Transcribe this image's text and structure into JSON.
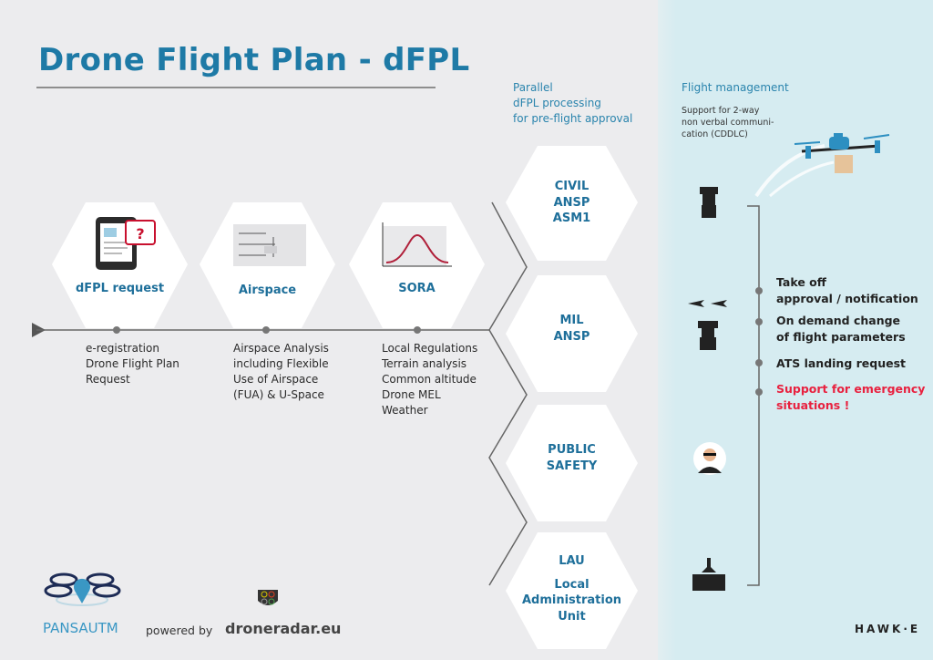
{
  "title": "Drone Flight Plan - dFPL",
  "steps": [
    {
      "label": "dFPL request",
      "details": [
        "e-registration",
        "Drone Flight Plan",
        "Request"
      ]
    },
    {
      "label": "Airspace",
      "details": [
        "Airspace Analysis",
        "including Flexible",
        "Use of Airspace",
        "(FUA) & U-Space"
      ]
    },
    {
      "label": "SORA",
      "details": [
        "Local Regulations",
        "Terrain analysis",
        "Common altitude",
        "Drone MEL",
        "Weather"
      ]
    }
  ],
  "parallel": {
    "heading": [
      "Parallel",
      "dFPL processing",
      "for pre-flight approval"
    ]
  },
  "authorities": [
    {
      "lines": [
        "CIVIL",
        "ANSP",
        "ASM1"
      ],
      "icon": "control-tower-icon"
    },
    {
      "lines": [
        "MIL",
        "ANSP"
      ],
      "icon": "military-tower-icon"
    },
    {
      "lines": [
        "PUBLIC",
        "SAFETY"
      ],
      "icon": "police-officer-icon"
    },
    {
      "lines": [
        "LAU",
        "",
        "Local",
        "Administration",
        "Unit"
      ],
      "icon": "town-hall-icon"
    }
  ],
  "flight_management": {
    "heading": "Flight management",
    "subtext": [
      "Support for 2-way",
      "non verbal communi-",
      "cation (CDDLC)"
    ],
    "items": [
      {
        "lines": [
          "Take off",
          "approval / notification"
        ],
        "emergency": false
      },
      {
        "lines": [
          "On demand change",
          "of flight parameters"
        ],
        "emergency": false
      },
      {
        "lines": [
          "ATS landing request"
        ],
        "emergency": false
      },
      {
        "lines": [
          "Support for emergency",
          "situations !"
        ],
        "emergency": true
      }
    ]
  },
  "footer": {
    "logo_pansa": "PANSAUTM",
    "powered_by": "powered by",
    "logo_droneradar": "droneradar.eu",
    "logo_hawke": "HAWK·E"
  },
  "colors": {
    "accent": "#1e7aa6",
    "emergency": "#e8213f",
    "panel": "#d6ecf1",
    "background": "#ececee"
  }
}
